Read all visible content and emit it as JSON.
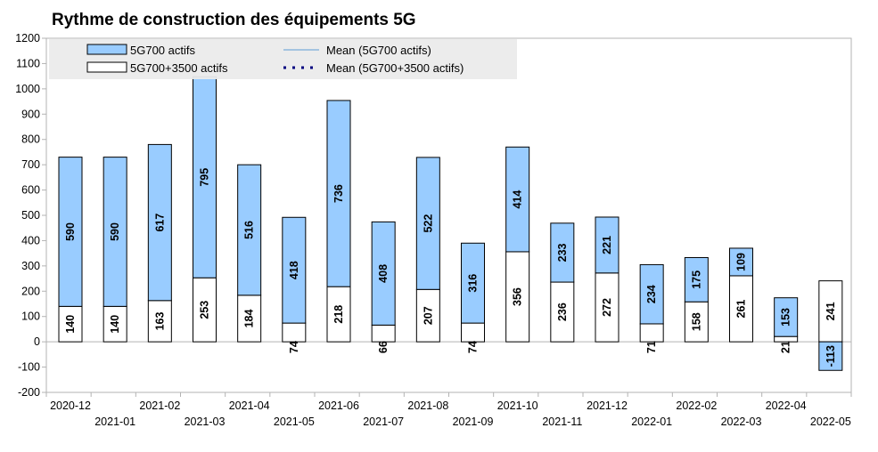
{
  "chart_data": {
    "type": "bar",
    "stacked": true,
    "title": "Rythme de construction des équipements 5G",
    "xlabel": "",
    "ylabel": "",
    "ylim": [
      -200,
      1200
    ],
    "yticks": [
      -200,
      -100,
      0,
      100,
      200,
      300,
      400,
      500,
      600,
      700,
      800,
      900,
      1000,
      1100,
      1200
    ],
    "grid": false,
    "legend_position": "top-left",
    "categories": [
      "2020-12",
      "2021-01",
      "2021-02",
      "2021-03",
      "2021-04",
      "2021-05",
      "2021-06",
      "2021-07",
      "2021-08",
      "2021-09",
      "2021-10",
      "2021-11",
      "2021-12",
      "2022-01",
      "2022-02",
      "2022-03",
      "2022-04",
      "2022-05"
    ],
    "series": [
      {
        "name": "5G700+3500 actifs",
        "color": "#ffffff",
        "values": [
          140,
          140,
          163,
          253,
          184,
          74,
          218,
          66,
          207,
          74,
          356,
          236,
          272,
          71,
          158,
          261,
          21,
          241
        ]
      },
      {
        "name": "5G700 actifs",
        "color": "#99ccff",
        "values": [
          590,
          590,
          617,
          795,
          516,
          418,
          736,
          408,
          522,
          316,
          414,
          233,
          221,
          234,
          175,
          109,
          153,
          -113
        ]
      }
    ],
    "legend": [
      {
        "name": "5G700 actifs",
        "symbol": "bar-blue"
      },
      {
        "name": "5G700+3500 actifs",
        "symbol": "bar-white"
      },
      {
        "name": "Mean (5G700 actifs)",
        "symbol": "line-solid"
      },
      {
        "name": "Mean (5G700+3500 actifs)",
        "symbol": "line-dotted"
      }
    ]
  }
}
